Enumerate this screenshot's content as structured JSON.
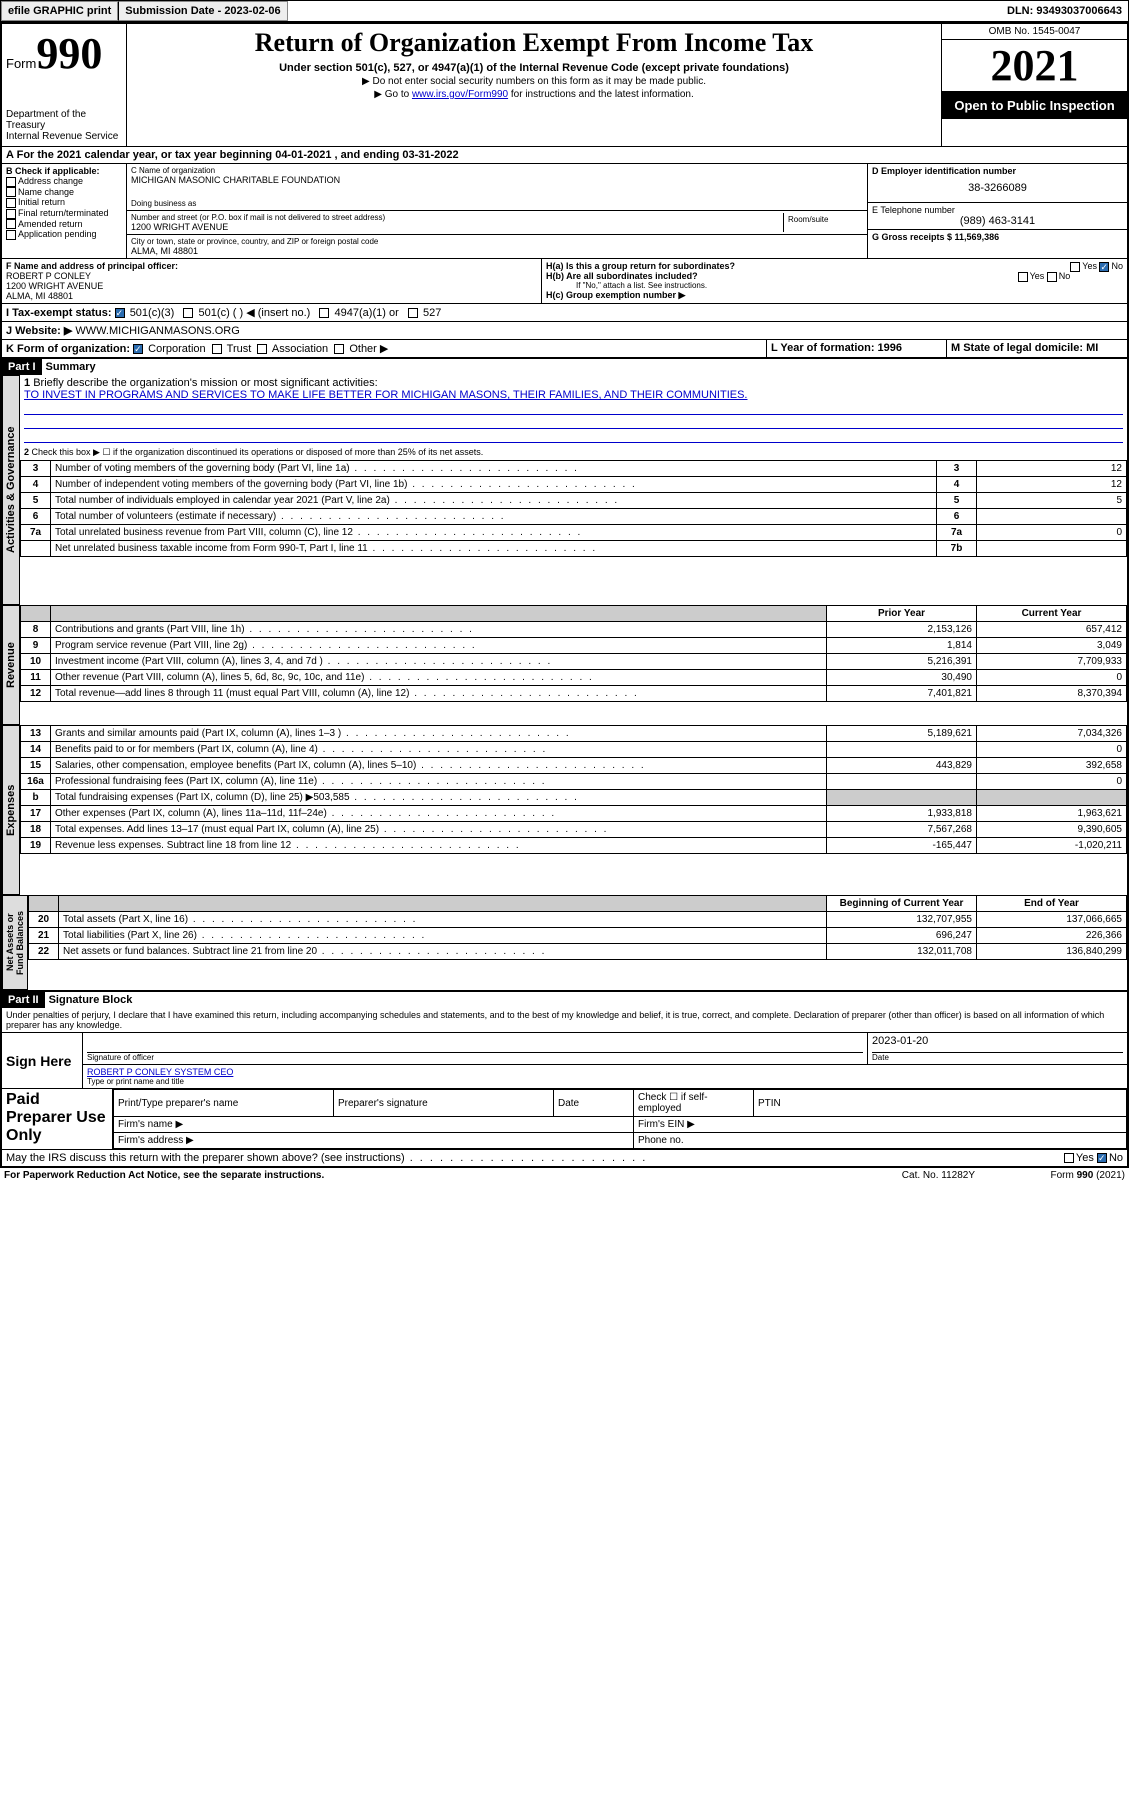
{
  "topbar": {
    "efile": "efile GRAPHIC print",
    "submission_label": "Submission Date - 2023-02-06",
    "dln_label": "DLN: 93493037006643"
  },
  "header": {
    "form_word": "Form",
    "form_number": "990",
    "dept": "Department of the Treasury",
    "irs": "Internal Revenue Service",
    "title": "Return of Organization Exempt From Income Tax",
    "subtitle": "Under section 501(c), 527, or 4947(a)(1) of the Internal Revenue Code (except private foundations)",
    "note1": "▶ Do not enter social security numbers on this form as it may be made public.",
    "note2_pre": "▶ Go to ",
    "note2_link": "www.irs.gov/Form990",
    "note2_post": " for instructions and the latest information.",
    "omb": "OMB No. 1545-0047",
    "year": "2021",
    "open": "Open to Public Inspection"
  },
  "sectionA": {
    "period": "For the 2021 calendar year, or tax year beginning 04-01-2021 , and ending 03-31-2022",
    "b_label": "B Check if applicable:",
    "checks": [
      "Address change",
      "Name change",
      "Initial return",
      "Final return/terminated",
      "Amended return",
      "Application pending"
    ],
    "c_label": "C Name of organization",
    "org_name": "MICHIGAN MASONIC CHARITABLE FOUNDATION",
    "dba_label": "Doing business as",
    "addr_label": "Number and street (or P.O. box if mail is not delivered to street address)",
    "room_label": "Room/suite",
    "street": "1200 WRIGHT AVENUE",
    "city_label": "City or town, state or province, country, and ZIP or foreign postal code",
    "city": "ALMA, MI  48801",
    "d_label": "D Employer identification number",
    "ein": "38-3266089",
    "e_label": "E Telephone number",
    "phone": "(989) 463-3141",
    "g_label": "G Gross receipts $ 11,569,386",
    "f_label": "F Name and address of principal officer:",
    "officer_name": "ROBERT P CONLEY",
    "officer_street": "1200 WRIGHT AVENUE",
    "officer_city": "ALMA, MI  48801",
    "ha": "H(a)  Is this a group return for subordinates?",
    "hb": "H(b)  Are all subordinates included?",
    "hb_note": "If \"No,\" attach a list. See instructions.",
    "hc": "H(c)  Group exemption number ▶",
    "yes": "Yes",
    "no": "No",
    "i_label": "I  Tax-exempt status:",
    "i_501c3": "501(c)(3)",
    "i_501c": "501(c) (  ) ◀ (insert no.)",
    "i_4947": "4947(a)(1) or",
    "i_527": "527",
    "j_label": "J  Website: ▶",
    "website": "WWW.MICHIGANMASONS.ORG",
    "k_label": "K Form of organization:",
    "k_corp": "Corporation",
    "k_trust": "Trust",
    "k_assoc": "Association",
    "k_other": "Other ▶",
    "l_label": "L Year of formation: 1996",
    "m_label": "M State of legal domicile: MI"
  },
  "part1": {
    "header": "Part I",
    "title": "Summary",
    "q1": "Briefly describe the organization's mission or most significant activities:",
    "mission": "TO INVEST IN PROGRAMS AND SERVICES TO MAKE LIFE BETTER FOR MICHIGAN MASONS, THEIR FAMILIES, AND THEIR COMMUNITIES.",
    "q2": "Check this box ▶ ☐ if the organization discontinued its operations or disposed of more than 25% of its net assets.",
    "tabs": {
      "gov": "Activities & Governance",
      "rev": "Revenue",
      "exp": "Expenses",
      "net": "Net Assets or Fund Balances"
    },
    "lines_gov": [
      {
        "n": "3",
        "t": "Number of voting members of the governing body (Part VI, line 1a)",
        "box": "3",
        "v": "12"
      },
      {
        "n": "4",
        "t": "Number of independent voting members of the governing body (Part VI, line 1b)",
        "box": "4",
        "v": "12"
      },
      {
        "n": "5",
        "t": "Total number of individuals employed in calendar year 2021 (Part V, line 2a)",
        "box": "5",
        "v": "5"
      },
      {
        "n": "6",
        "t": "Total number of volunteers (estimate if necessary)",
        "box": "6",
        "v": ""
      },
      {
        "n": "7a",
        "t": "Total unrelated business revenue from Part VIII, column (C), line 12",
        "box": "7a",
        "v": "0"
      },
      {
        "n": "",
        "t": "Net unrelated business taxable income from Form 990-T, Part I, line 11",
        "box": "7b",
        "v": ""
      }
    ],
    "col_prior": "Prior Year",
    "col_current": "Current Year",
    "lines_rev": [
      {
        "n": "8",
        "t": "Contributions and grants (Part VIII, line 1h)",
        "p": "2,153,126",
        "c": "657,412"
      },
      {
        "n": "9",
        "t": "Program service revenue (Part VIII, line 2g)",
        "p": "1,814",
        "c": "3,049"
      },
      {
        "n": "10",
        "t": "Investment income (Part VIII, column (A), lines 3, 4, and 7d )",
        "p": "5,216,391",
        "c": "7,709,933"
      },
      {
        "n": "11",
        "t": "Other revenue (Part VIII, column (A), lines 5, 6d, 8c, 9c, 10c, and 11e)",
        "p": "30,490",
        "c": "0"
      },
      {
        "n": "12",
        "t": "Total revenue—add lines 8 through 11 (must equal Part VIII, column (A), line 12)",
        "p": "7,401,821",
        "c": "8,370,394"
      }
    ],
    "lines_exp": [
      {
        "n": "13",
        "t": "Grants and similar amounts paid (Part IX, column (A), lines 1–3 )",
        "p": "5,189,621",
        "c": "7,034,326"
      },
      {
        "n": "14",
        "t": "Benefits paid to or for members (Part IX, column (A), line 4)",
        "p": "",
        "c": "0"
      },
      {
        "n": "15",
        "t": "Salaries, other compensation, employee benefits (Part IX, column (A), lines 5–10)",
        "p": "443,829",
        "c": "392,658"
      },
      {
        "n": "16a",
        "t": "Professional fundraising fees (Part IX, column (A), line 11e)",
        "p": "",
        "c": "0"
      },
      {
        "n": "b",
        "t": "Total fundraising expenses (Part IX, column (D), line 25) ▶503,585",
        "p": "shade",
        "c": "shade"
      },
      {
        "n": "17",
        "t": "Other expenses (Part IX, column (A), lines 11a–11d, 11f–24e)",
        "p": "1,933,818",
        "c": "1,963,621"
      },
      {
        "n": "18",
        "t": "Total expenses. Add lines 13–17 (must equal Part IX, column (A), line 25)",
        "p": "7,567,268",
        "c": "9,390,605"
      },
      {
        "n": "19",
        "t": "Revenue less expenses. Subtract line 18 from line 12",
        "p": "-165,447",
        "c": "-1,020,211"
      }
    ],
    "col_begin": "Beginning of Current Year",
    "col_end": "End of Year",
    "lines_net": [
      {
        "n": "20",
        "t": "Total assets (Part X, line 16)",
        "p": "132,707,955",
        "c": "137,066,665"
      },
      {
        "n": "21",
        "t": "Total liabilities (Part X, line 26)",
        "p": "696,247",
        "c": "226,366"
      },
      {
        "n": "22",
        "t": "Net assets or fund balances. Subtract line 21 from line 20",
        "p": "132,011,708",
        "c": "136,840,299"
      }
    ]
  },
  "part2": {
    "header": "Part II",
    "title": "Signature Block",
    "declaration": "Under penalties of perjury, I declare that I have examined this return, including accompanying schedules and statements, and to the best of my knowledge and belief, it is true, correct, and complete. Declaration of preparer (other than officer) is based on all information of which preparer has any knowledge.",
    "sign_here": "Sign Here",
    "sig_officer": "Signature of officer",
    "sig_date": "Date",
    "sig_date_val": "2023-01-20",
    "officer_name_title": "ROBERT P CONLEY SYSTEM CEO",
    "type_name": "Type or print name and title",
    "paid": "Paid Preparer Use Only",
    "prep_name": "Print/Type preparer's name",
    "prep_sig": "Preparer's signature",
    "prep_date": "Date",
    "prep_check": "Check ☐ if self-employed",
    "ptin": "PTIN",
    "firm_name": "Firm's name  ▶",
    "firm_ein": "Firm's EIN ▶",
    "firm_addr": "Firm's address ▶",
    "phone": "Phone no.",
    "may_irs": "May the IRS discuss this return with the preparer shown above? (see instructions)",
    "footer_left": "For Paperwork Reduction Act Notice, see the separate instructions.",
    "footer_mid": "Cat. No. 11282Y",
    "footer_right": "Form 990 (2021)"
  }
}
